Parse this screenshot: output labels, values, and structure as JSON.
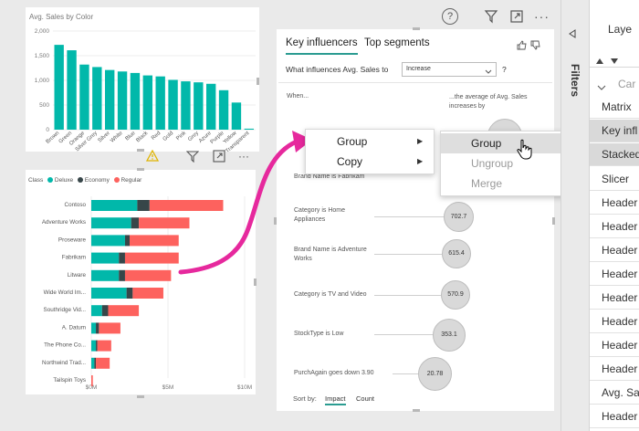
{
  "top_icons": {
    "help": "help-icon",
    "filter": "filter-icon",
    "focus": "focus-mode-icon",
    "more": "more-options-icon"
  },
  "colors": {
    "teal": "#01b8aa",
    "dark": "#374649",
    "red": "#fd625e",
    "accent": "#2b9c91",
    "magenta": "#e6299d"
  },
  "color_chart": {
    "chart_data": {
      "type": "bar",
      "title": "Avg. Sales by Color",
      "categories": [
        "Brown",
        "Green",
        "Orange",
        "Silver Grey",
        "Silver",
        "White",
        "Blue",
        "Black",
        "Red",
        "Gold",
        "Pink",
        "Grey",
        "Azure",
        "Purple",
        "Yellow",
        "Transparent"
      ],
      "values": [
        1720,
        1610,
        1320,
        1270,
        1210,
        1180,
        1150,
        1100,
        1080,
        1010,
        980,
        960,
        930,
        800,
        550,
        20
      ],
      "y_ticks": [
        "2,000",
        "1,500",
        "1,000",
        "500",
        "0"
      ],
      "ylim": [
        0,
        2000
      ],
      "xlabel": "",
      "ylabel": ""
    }
  },
  "class_chart": {
    "chart_data": {
      "type": "bar",
      "orientation": "horizontal-stacked",
      "legend_title": "Class",
      "categories": [
        "Contoso",
        "Adventure Works",
        "Proseware",
        "Fabrikam",
        "Litware",
        "Wide World Im...",
        "Southridge Vid...",
        "A. Datum",
        "The Phone Co...",
        "Northwind Trad...",
        "Tailspin Toys"
      ],
      "series": [
        {
          "name": "Deluxe",
          "color": "#01b8aa",
          "values": [
            3.0,
            2.6,
            2.2,
            1.8,
            1.8,
            2.3,
            0.7,
            0.3,
            0.3,
            0.2,
            0.0
          ]
        },
        {
          "name": "Economy",
          "color": "#374649",
          "values": [
            0.8,
            0.5,
            0.3,
            0.4,
            0.4,
            0.4,
            0.4,
            0.2,
            0.1,
            0.1,
            0.0
          ]
        },
        {
          "name": "Regular",
          "color": "#fd625e",
          "values": [
            4.8,
            3.3,
            3.2,
            3.5,
            3.0,
            2.0,
            2.0,
            1.4,
            0.9,
            0.9,
            0.1
          ]
        }
      ],
      "x_ticks": [
        "$0M",
        "$5M",
        "$10M"
      ],
      "xlim": [
        0,
        10
      ]
    }
  },
  "key_influencers": {
    "tab_active": "Key influencers",
    "tab_other": "Top segments",
    "question": "What influences Avg. Sales to",
    "dropdown_value": "Increase",
    "question_mark": "?",
    "col_when": "When...",
    "col_avg": "...the average of Avg. Sales increases by",
    "rows": [
      {
        "label": "Brand Name is Fabrikam",
        "value": ""
      },
      {
        "label": "Category is Home Appliances",
        "value": "702.7"
      },
      {
        "label": "Brand Name is Adventure Works",
        "value": "615.4"
      },
      {
        "label": "Category is TV and Video",
        "value": "570.9"
      },
      {
        "label": "StockType is Low",
        "value": "353.1"
      },
      {
        "label": "PurchAgain goes down 3.90",
        "value": "20.78"
      }
    ],
    "sort_by": "Sort by:",
    "sort_impact": "Impact",
    "sort_count": "Count"
  },
  "context_menu": {
    "group": "Group",
    "copy": "Copy"
  },
  "submenu": {
    "group": "Group",
    "ungroup": "Ungroup",
    "merge": "Merge"
  },
  "filters_label": "Filters",
  "right_pane": {
    "header": "Laye",
    "section": "Car",
    "items": [
      "Matrix",
      "Key infl",
      "Stacked",
      "Slicer",
      "Header",
      "Header",
      "Header",
      "Header",
      "Header",
      "Header",
      "Header",
      "Header",
      "Avg. Sa",
      "Header"
    ]
  }
}
